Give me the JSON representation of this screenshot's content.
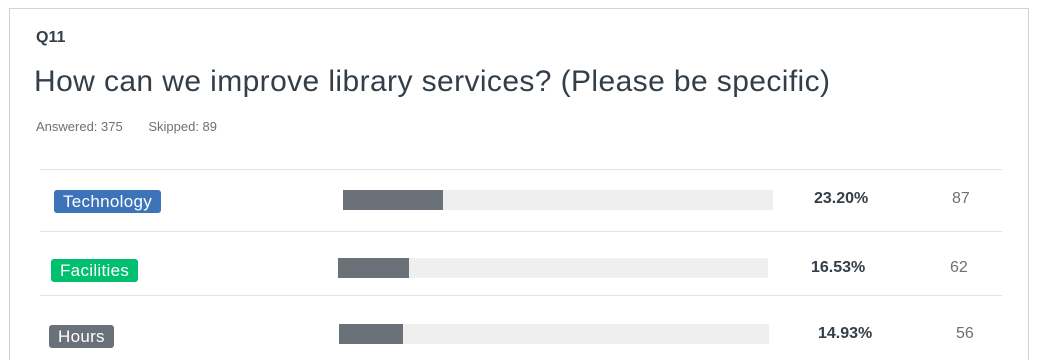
{
  "question": {
    "number": "Q11",
    "title": "How can we improve library services? (Please be specific)",
    "answered": "Answered: 375",
    "skipped": "Skipped: 89"
  },
  "chart_data": {
    "type": "bar",
    "orientation": "horizontal",
    "categories": [
      "Technology",
      "Facilities",
      "Hours"
    ],
    "values": [
      23.2,
      16.53,
      14.93
    ],
    "percent_labels": [
      "23.20%",
      "16.53%",
      "14.93%"
    ],
    "counts": [
      "87",
      "62",
      "56"
    ],
    "category_colors": [
      "#3d73b9",
      "#00bf6f",
      "#6b7178"
    ],
    "bar_color": "#6b7178",
    "track_color": "#efeff0",
    "xlim": [
      0,
      100
    ]
  }
}
